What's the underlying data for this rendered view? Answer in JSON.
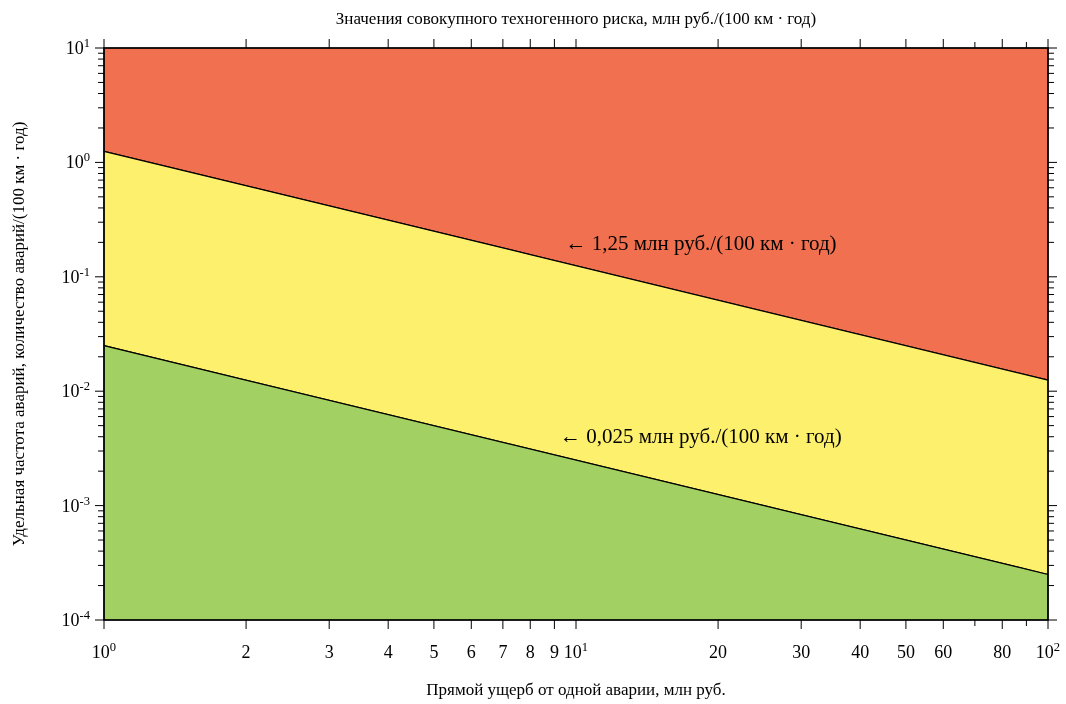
{
  "chart_data": {
    "type": "area",
    "title": "Значения совокупного техногенного риска, млн руб./(100 км · год)",
    "xlabel": "Прямой ущерб от одной аварии, млн руб.",
    "ylabel": "Удельная частота аварий, количество аварий/(100 км · год)",
    "log": "xy",
    "grid": false,
    "x": [
      1,
      100
    ],
    "series": [
      {
        "color": "#f1704f",
        "values": [
          10,
          10
        ]
      },
      {
        "color": "#fdf06d",
        "values": [
          1.25,
          0.0125
        ]
      },
      {
        "color": "#a2d063",
        "values": [
          0.025,
          0.00025
        ]
      }
    ],
    "annotations": [
      {
        "text": "← 1,25 млн руб./(100 км · год)",
        "x": 9.5,
        "y": 0.1316
      },
      {
        "text": "← 0,025 млн руб./(100 км · год)",
        "x": 9.25,
        "y": 0.0027
      }
    ],
    "xlim": [
      1,
      100
    ],
    "ylim": [
      0.0001,
      10
    ],
    "xticks": [
      {
        "value": 1,
        "label": "10$^{0}$"
      },
      2,
      3,
      4,
      5,
      6,
      7,
      8,
      9,
      {
        "value": 10,
        "label": "10$^{1}$"
      },
      20,
      30,
      40,
      50,
      60,
      {
        "value": 70,
        "label": null
      },
      80,
      {
        "value": 90,
        "label": null
      },
      {
        "value": 100,
        "label": "10$^{2}$"
      }
    ],
    "yticks": [
      {
        "value": 0.0001,
        "label": "10$^{-4}$"
      },
      {
        "value": 0.0002,
        "label": null
      },
      {
        "value": 0.0003,
        "label": null
      },
      {
        "value": 0.0004,
        "label": null
      },
      {
        "value": 0.0005,
        "label": null
      },
      {
        "value": 0.0006,
        "label": null
      },
      {
        "value": 0.0007,
        "label": null
      },
      {
        "value": 0.0008,
        "label": null
      },
      {
        "value": 0.0009,
        "label": null
      },
      {
        "value": 0.001,
        "label": "10$^{-3}$"
      },
      {
        "value": 0.002,
        "label": null
      },
      {
        "value": 0.003,
        "label": null
      },
      {
        "value": 0.004,
        "label": null
      },
      {
        "value": 0.005,
        "label": null
      },
      {
        "value": 0.006,
        "label": null
      },
      {
        "value": 0.007,
        "label": null
      },
      {
        "value": 0.008,
        "label": null
      },
      {
        "value": 0.009,
        "label": null
      },
      {
        "value": 0.01,
        "label": "10$^{-2}$"
      },
      {
        "value": 0.02,
        "label": null
      },
      {
        "value": 0.03,
        "label": null
      },
      {
        "value": 0.04,
        "label": null
      },
      {
        "value": 0.05,
        "label": null
      },
      {
        "value": 0.06,
        "label": null
      },
      {
        "value": 0.07,
        "label": null
      },
      {
        "value": 0.08,
        "label": null
      },
      {
        "value": 0.09,
        "label": null
      },
      {
        "value": 0.1,
        "label": "10$^{-1}$"
      },
      {
        "value": 0.2,
        "label": null
      },
      {
        "value": 0.3,
        "label": null
      },
      {
        "value": 0.4,
        "label": null
      },
      {
        "value": 0.5,
        "label": null
      },
      {
        "value": 0.6,
        "label": null
      },
      {
        "value": 0.7,
        "label": null
      },
      {
        "value": 0.8,
        "label": null
      },
      {
        "value": 0.9,
        "label": null
      },
      {
        "value": 1,
        "label": "10$^{0}$"
      },
      {
        "value": 2,
        "label": null
      },
      {
        "value": 3,
        "label": null
      },
      {
        "value": 4,
        "label": null
      },
      {
        "value": 5,
        "label": null
      },
      {
        "value": 6,
        "label": null
      },
      {
        "value": 7,
        "label": null
      },
      {
        "value": 8,
        "label": null
      },
      {
        "value": 9,
        "label": null
      },
      {
        "value": 10,
        "label": "10$^{1}$"
      }
    ]
  }
}
